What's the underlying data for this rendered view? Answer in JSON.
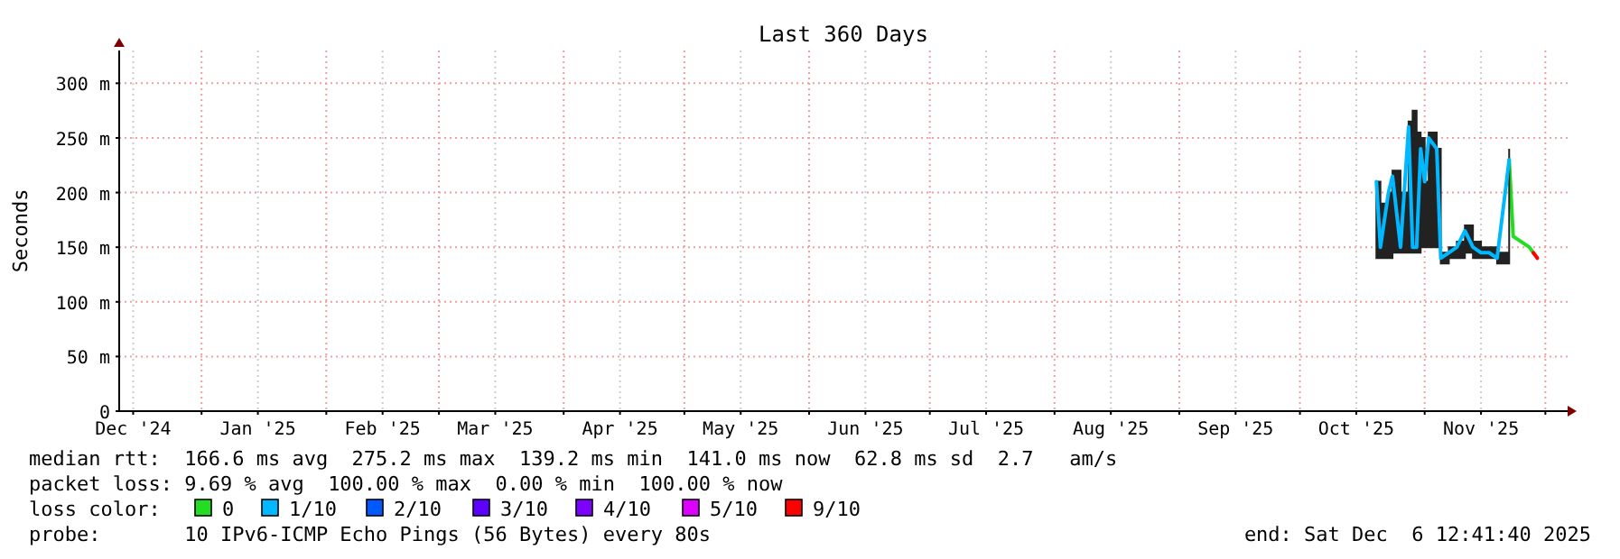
{
  "chart_data": {
    "type": "line",
    "title": "Last 360 Days",
    "ylabel": "Seconds",
    "legend_title": "loss color:",
    "legend": "bottom",
    "grid": true,
    "x": [
      "2025-10-20",
      "2025-10-21",
      "2025-10-23",
      "2025-10-24",
      "2025-10-26",
      "2025-10-28",
      "2025-10-29",
      "2025-10-30",
      "2025-10-31",
      "2025-11-01",
      "2025-11-02",
      "2025-11-04",
      "2025-11-05",
      "2025-11-07",
      "2025-11-09",
      "2025-11-11",
      "2025-11-13",
      "2025-11-15",
      "2025-11-17",
      "2025-11-19",
      "2025-11-22",
      "2025-11-23",
      "2025-11-25",
      "2025-11-27",
      "2025-11-28",
      "2025-11-29"
    ],
    "xlim": [
      "2024-12-11T12:41",
      "2025-12-06T12:41"
    ],
    "xticks": [
      {
        "value": "2024-12-15",
        "label": "Dec '24"
      },
      {
        "value": "2025-01-01",
        "label": null
      },
      {
        "value": "2025-01-15",
        "label": "Jan '25"
      },
      {
        "value": "2025-02-01",
        "label": null
      },
      {
        "value": "2025-02-15",
        "label": "Feb '25"
      },
      {
        "value": "2025-03-01",
        "label": null
      },
      {
        "value": "2025-03-15",
        "label": "Mar '25"
      },
      {
        "value": "2025-04-01",
        "label": null
      },
      {
        "value": "2025-04-15",
        "label": "Apr '25"
      },
      {
        "value": "2025-05-01",
        "label": null
      },
      {
        "value": "2025-05-15",
        "label": "May '25"
      },
      {
        "value": "2025-06-01",
        "label": null
      },
      {
        "value": "2025-06-15",
        "label": "Jun '25"
      },
      {
        "value": "2025-07-01",
        "label": null
      },
      {
        "value": "2025-07-15",
        "label": "Jul '25"
      },
      {
        "value": "2025-08-01",
        "label": null
      },
      {
        "value": "2025-08-15",
        "label": "Aug '25"
      },
      {
        "value": "2025-09-01",
        "label": null
      },
      {
        "value": "2025-09-15",
        "label": "Sep '25"
      },
      {
        "value": "2025-10-01",
        "label": null
      },
      {
        "value": "2025-10-15",
        "label": "Oct '25"
      },
      {
        "value": "2025-11-01",
        "label": null
      },
      {
        "value": "2025-11-15",
        "label": "Nov '25"
      },
      {
        "value": "2025-12-01",
        "label": null
      }
    ],
    "ylim": [
      0,
      330
    ],
    "yticks": [
      0,
      {
        "value": 50,
        "label": "50 m"
      },
      {
        "value": 100,
        "label": "100 m"
      },
      {
        "value": 150,
        "label": "150 m"
      },
      {
        "value": 200,
        "label": "200 m"
      },
      {
        "value": 250,
        "label": "250 m"
      },
      {
        "value": 300,
        "label": "300 m"
      }
    ],
    "series": [
      {
        "name": "0",
        "color": "#22dd22",
        "values": [
          null,
          null,
          null,
          null,
          null,
          null,
          null,
          null,
          null,
          null,
          null,
          null,
          null,
          null,
          null,
          null,
          null,
          null,
          null,
          null,
          230,
          160,
          155,
          150,
          145,
          null
        ]
      },
      {
        "name": "1/10",
        "color": "#00b8ff",
        "values": [
          210,
          150,
          200,
          215,
          150,
          260,
          150,
          150,
          240,
          210,
          250,
          240,
          140,
          145,
          150,
          165,
          150,
          145,
          145,
          140,
          230,
          null,
          null,
          null,
          null,
          null
        ],
        "lower": [
          140,
          140,
          140,
          145,
          145,
          145,
          145,
          145,
          150,
          150,
          150,
          150,
          135,
          140,
          140,
          145,
          140,
          140,
          140,
          135,
          145,
          null,
          null,
          null,
          null,
          null
        ],
        "upper": [
          210,
          190,
          200,
          220,
          200,
          265,
          275,
          255,
          250,
          210,
          255,
          240,
          145,
          150,
          155,
          170,
          155,
          150,
          150,
          145,
          240,
          null,
          null,
          null,
          null,
          null
        ]
      },
      {
        "name": "2/10",
        "color": "#0059ff",
        "values": [
          null,
          null,
          null,
          null,
          null,
          null,
          null,
          null,
          null,
          null,
          null,
          null,
          null,
          null,
          null,
          null,
          null,
          null,
          null,
          null,
          null,
          null,
          null,
          null,
          null,
          null
        ]
      },
      {
        "name": "3/10",
        "color": "#5e00ff",
        "values": [
          null,
          null,
          null,
          null,
          null,
          null,
          null,
          null,
          null,
          null,
          null,
          null,
          null,
          null,
          null,
          null,
          null,
          null,
          null,
          null,
          null,
          null,
          null,
          null,
          null,
          null
        ]
      },
      {
        "name": "4/10",
        "color": "#7e00ff",
        "values": [
          null,
          null,
          null,
          null,
          null,
          null,
          null,
          null,
          null,
          null,
          null,
          null,
          null,
          null,
          null,
          null,
          null,
          null,
          null,
          null,
          null,
          null,
          null,
          null,
          null,
          null
        ]
      },
      {
        "name": "5/10",
        "color": "#dd00ff",
        "values": [
          null,
          null,
          null,
          null,
          null,
          null,
          null,
          null,
          null,
          null,
          null,
          null,
          null,
          null,
          null,
          null,
          null,
          null,
          null,
          null,
          null,
          null,
          null,
          null,
          null,
          null
        ]
      },
      {
        "name": "9/10",
        "color": "#ff0000",
        "values": [
          null,
          null,
          null,
          null,
          null,
          null,
          null,
          null,
          null,
          null,
          null,
          null,
          null,
          null,
          null,
          null,
          null,
          null,
          null,
          null,
          null,
          null,
          null,
          null,
          145,
          140
        ]
      }
    ],
    "annotations": [
      "median rtt:  166.6 ms avg  275.2 ms max  139.2 ms min  141.0 ms now  62.8 ms sd  2.7   am/s",
      "packet loss: 9.69 % avg  100.00 % max  0.00 % min  100.00 % now",
      "probe:       10 IPv6-ICMP Echo Pings (56 Bytes) every 80s",
      "end: Sat Dec  6 12:41:40 2025"
    ]
  }
}
